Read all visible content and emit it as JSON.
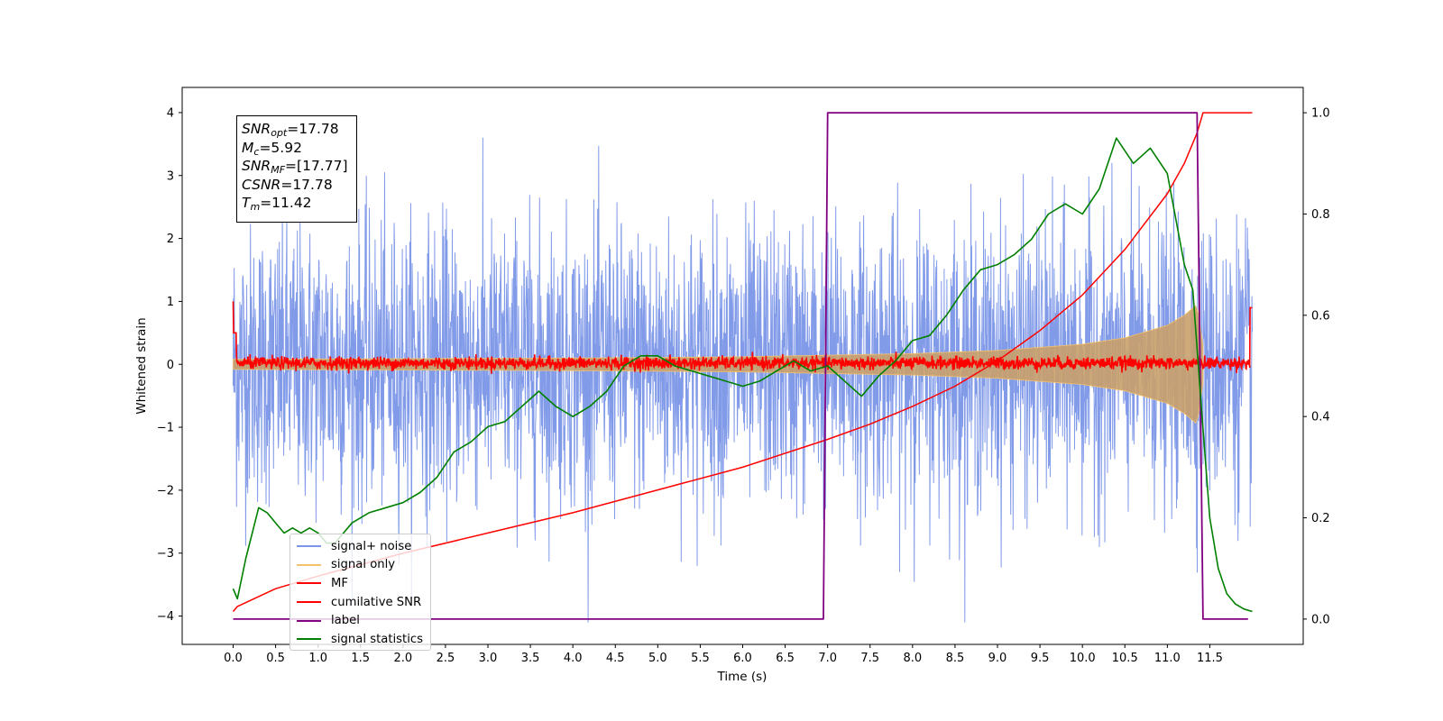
{
  "chart_data": {
    "type": "line",
    "xlabel": "Time (s)",
    "ylabel": "Whitened strain",
    "xlim": [
      -0.6,
      12.6
    ],
    "ylim": [
      -4.45,
      4.4
    ],
    "ylim_right": [
      -0.05,
      1.05
    ],
    "x_ticks": [
      "0.0",
      "0.5",
      "1.0",
      "1.5",
      "2.0",
      "2.5",
      "3.0",
      "3.5",
      "4.0",
      "4.5",
      "5.0",
      "5.5",
      "6.0",
      "6.5",
      "7.0",
      "7.5",
      "8.0",
      "8.5",
      "9.0",
      "9.5",
      "10.0",
      "10.5",
      "11.0",
      "11.5"
    ],
    "y_ticks_left": [
      "−4",
      "−3",
      "−2",
      "−1",
      "0",
      "1",
      "2",
      "3",
      "4"
    ],
    "y_ticks_right": [
      "0.0",
      "0.2",
      "0.4",
      "0.6",
      "0.8",
      "1.0"
    ],
    "grid": false,
    "legend_position": "lower-left",
    "annotation": [
      {
        "sym": "SNR",
        "sub": "opt",
        "val": "=17.78"
      },
      {
        "sym": "M",
        "sub": "c",
        "val": "=5.92"
      },
      {
        "sym": "SNR",
        "sub": "MF",
        "val": "=[17.77]"
      },
      {
        "sym": "CSNR",
        "sub": "",
        "val": "=17.78"
      },
      {
        "sym": "T",
        "sub": "m",
        "val": "=11.42"
      }
    ],
    "series": [
      {
        "name": "signal+ noise",
        "color": "#7b96e8",
        "axis": "left",
        "description_values": {
          "mean": 0.0,
          "approx_envelope": [
            -3.5,
            3.9
          ],
          "x_range": [
            0.0,
            12.0
          ]
        }
      },
      {
        "name": "signal only",
        "color": "#f5c26b",
        "axis": "left",
        "envelope_x": [
          0.0,
          2.0,
          4.0,
          6.0,
          8.0,
          9.0,
          10.0,
          10.5,
          11.0,
          11.2,
          11.35,
          11.42
        ],
        "envelope_amp": [
          0.08,
          0.09,
          0.1,
          0.12,
          0.17,
          0.22,
          0.32,
          0.42,
          0.62,
          0.78,
          0.95,
          0.3
        ]
      },
      {
        "name": "MF",
        "color": "#ff0000",
        "axis": "left",
        "description_values": {
          "mean": 0.0,
          "approx_envelope": [
            -0.1,
            0.2
          ],
          "edge_values": [
            1.0,
            0.95
          ]
        }
      },
      {
        "name": "cumilative SNR",
        "color": "#ff0000",
        "axis": "right",
        "x": [
          0.0,
          0.05,
          0.5,
          1.0,
          2.0,
          3.0,
          4.0,
          5.0,
          6.0,
          7.0,
          7.5,
          8.0,
          8.5,
          9.0,
          9.5,
          10.0,
          10.5,
          11.0,
          11.2,
          11.35,
          11.42,
          12.0
        ],
        "y": [
          0.015,
          0.025,
          0.06,
          0.085,
          0.13,
          0.17,
          0.21,
          0.255,
          0.3,
          0.355,
          0.385,
          0.42,
          0.46,
          0.51,
          0.57,
          0.64,
          0.73,
          0.84,
          0.9,
          0.96,
          1.0,
          1.0
        ]
      },
      {
        "name": "label",
        "color": "#800080",
        "axis": "right",
        "x": [
          0.0,
          6.95,
          7.0,
          11.35,
          11.42,
          11.95
        ],
        "y": [
          0.0,
          0.0,
          1.0,
          1.0,
          0.0,
          0.0
        ]
      },
      {
        "name": "signal statistics",
        "color": "#008000",
        "axis": "right",
        "x": [
          0.0,
          0.05,
          0.15,
          0.3,
          0.4,
          0.5,
          0.6,
          0.7,
          0.8,
          0.9,
          1.0,
          1.1,
          1.2,
          1.3,
          1.4,
          1.6,
          1.8,
          2.0,
          2.2,
          2.4,
          2.6,
          2.8,
          3.0,
          3.2,
          3.4,
          3.6,
          3.8,
          4.0,
          4.2,
          4.4,
          4.6,
          4.8,
          5.0,
          5.2,
          5.4,
          5.6,
          5.8,
          6.0,
          6.2,
          6.4,
          6.6,
          6.8,
          7.0,
          7.2,
          7.4,
          7.6,
          7.8,
          8.0,
          8.2,
          8.4,
          8.6,
          8.8,
          9.0,
          9.2,
          9.4,
          9.6,
          9.8,
          10.0,
          10.2,
          10.4,
          10.6,
          10.8,
          11.0,
          11.2,
          11.3,
          11.4,
          11.5,
          11.6,
          11.7,
          11.8,
          11.9,
          12.0
        ],
        "y": [
          0.06,
          0.04,
          0.12,
          0.22,
          0.21,
          0.19,
          0.17,
          0.18,
          0.17,
          0.18,
          0.17,
          0.15,
          0.15,
          0.17,
          0.19,
          0.21,
          0.22,
          0.23,
          0.25,
          0.28,
          0.33,
          0.35,
          0.38,
          0.39,
          0.42,
          0.45,
          0.42,
          0.4,
          0.42,
          0.45,
          0.5,
          0.52,
          0.52,
          0.5,
          0.49,
          0.48,
          0.47,
          0.46,
          0.47,
          0.49,
          0.51,
          0.49,
          0.5,
          0.47,
          0.44,
          0.48,
          0.51,
          0.55,
          0.56,
          0.6,
          0.65,
          0.69,
          0.7,
          0.72,
          0.75,
          0.8,
          0.82,
          0.8,
          0.85,
          0.95,
          0.9,
          0.93,
          0.88,
          0.7,
          0.65,
          0.42,
          0.2,
          0.1,
          0.05,
          0.03,
          0.02,
          0.015
        ]
      }
    ]
  }
}
